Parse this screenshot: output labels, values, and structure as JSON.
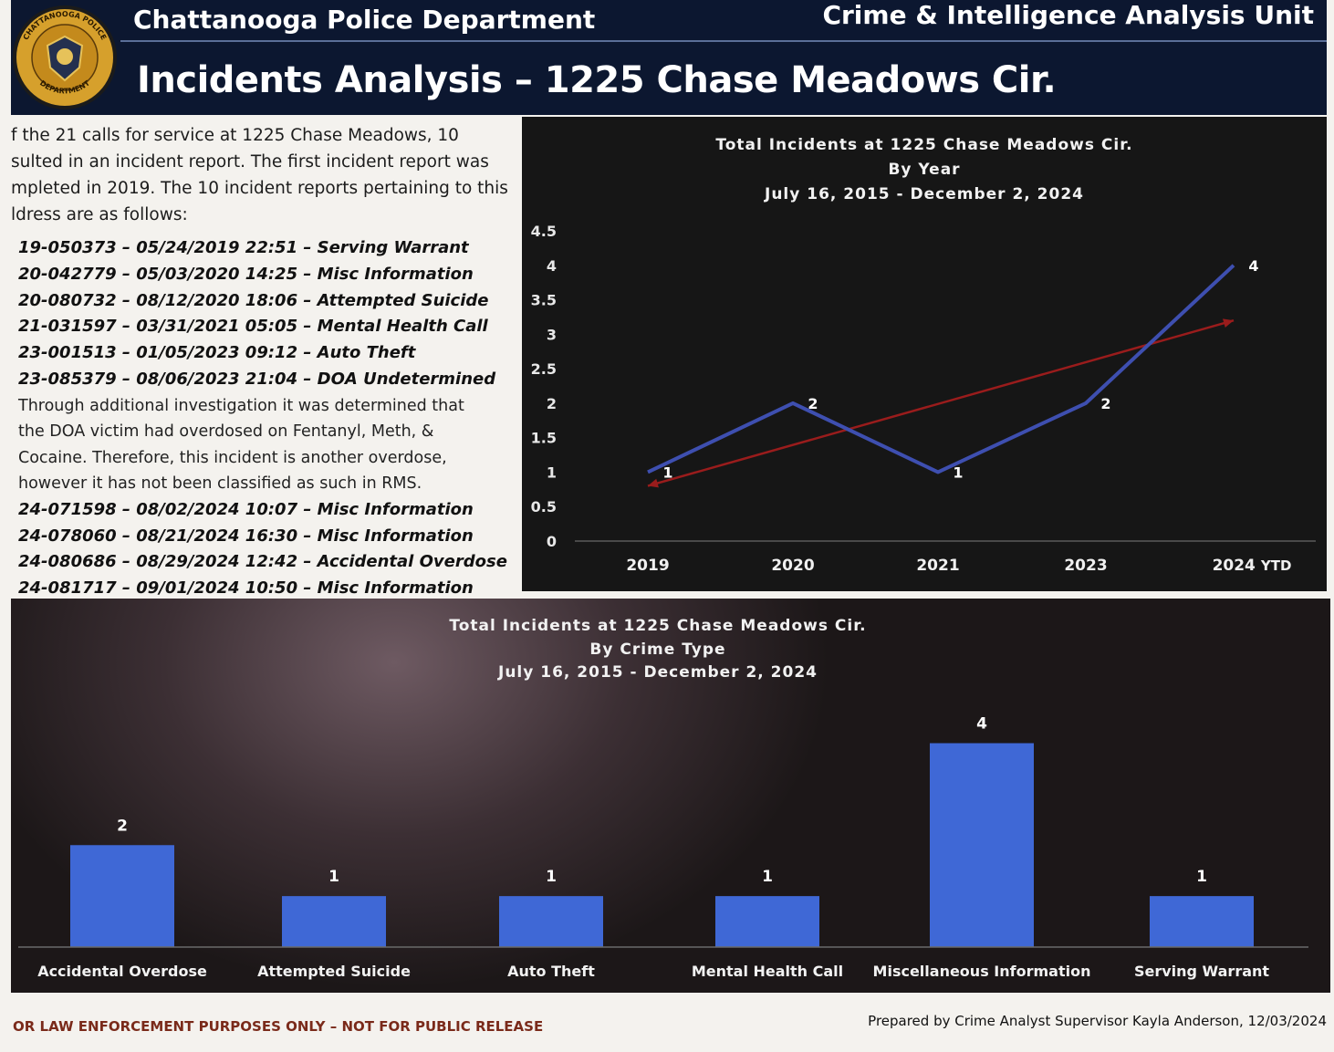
{
  "header": {
    "department": "Chattanooga Police Department",
    "unit": "Crime & Intelligence Analysis Unit",
    "title": "Incidents Analysis – 1225 Chase Meadows Cir.",
    "badge": {
      "icon": "police-badge-icon",
      "top_text": "CHATTANOOGA POLICE",
      "bottom_text": "DEPARTMENT"
    }
  },
  "summary": {
    "lines": [
      "f the 21 calls for service at 1225 Chase Meadows, 10",
      "sulted in an incident report. The first incident report was",
      "mpleted in 2019. The 10 incident reports pertaining to this",
      "ldress are as follows:"
    ]
  },
  "incidents_top": [
    "19-050373 – 05/24/2019 22:51 – Serving Warrant",
    "20-042779 – 05/03/2020 14:25 – Misc Information",
    "20-080732 – 08/12/2020 18:06 – Attempted Suicide",
    "21-031597 – 03/31/2021 05:05 – Mental Health Call",
    "23-001513 – 01/05/2023 09:12 – Auto Theft",
    "23-085379 – 08/06/2023 21:04 – DOA Undetermined"
  ],
  "doa_note": [
    "Through additional investigation it was determined that",
    "the DOA victim had overdosed on Fentanyl, Meth, &",
    "Cocaine. Therefore, this incident is another overdose,",
    "however it has not been classified as such in RMS."
  ],
  "incidents_bottom": [
    "24-071598 – 08/02/2024 10:07 – Misc Information",
    "24-078060 – 08/21/2024 16:30 – Misc Information",
    "24-080686 – 08/29/2024 12:42 – Accidental Overdose",
    "24-081717 – 09/01/2024 10:50 – Misc Information"
  ],
  "footer": {
    "left": "OR LAW ENFORCEMENT PURPOSES ONLY – NOT FOR PUBLIC RELEASE",
    "right": "Prepared by Crime Analyst Supervisor Kayla Anderson, 12/03/2024"
  },
  "colors": {
    "header_bg": "#0c1730",
    "line_series": "#3e4fb0",
    "trend_line": "#9a1c1c",
    "bar_fill": "#3f68d6"
  },
  "chart_data": [
    {
      "type": "line",
      "title": "Total Incidents at 1225 Chase Meadows Cir.",
      "subtitle": "By Year",
      "date_range": "July 16, 2015 - December 2, 2024",
      "categories": [
        "2019",
        "2020",
        "2021",
        "2023",
        "2024"
      ],
      "ytd_label": "YTD",
      "series": [
        {
          "values": [
            1,
            2,
            1,
            2,
            4
          ]
        }
      ],
      "trendline": {
        "type": "linear",
        "color": "#9a1c1c",
        "arrow": true
      },
      "yticks": [
        "0",
        "0.5",
        "1",
        "1.5",
        "2",
        "2.5",
        "3",
        "3.5",
        "4",
        "4.5"
      ],
      "ylim": [
        0,
        4.5
      ],
      "data_labels": true,
      "legend": "none",
      "grid": false
    },
    {
      "type": "bar",
      "title": "Total Incidents at 1225 Chase Meadows Cir.",
      "subtitle": "By Crime Type",
      "date_range": "July 16, 2015 - December 2, 2024",
      "categories": [
        "Accidental Overdose",
        "Attempted Suicide",
        "Auto Theft",
        "Mental Health Call",
        "Miscellaneous Information",
        "Serving Warrant"
      ],
      "values": [
        2,
        1,
        1,
        1,
        4,
        1
      ],
      "ylim": [
        0,
        4.6
      ],
      "data_labels": true,
      "legend": "none",
      "grid": false
    }
  ]
}
